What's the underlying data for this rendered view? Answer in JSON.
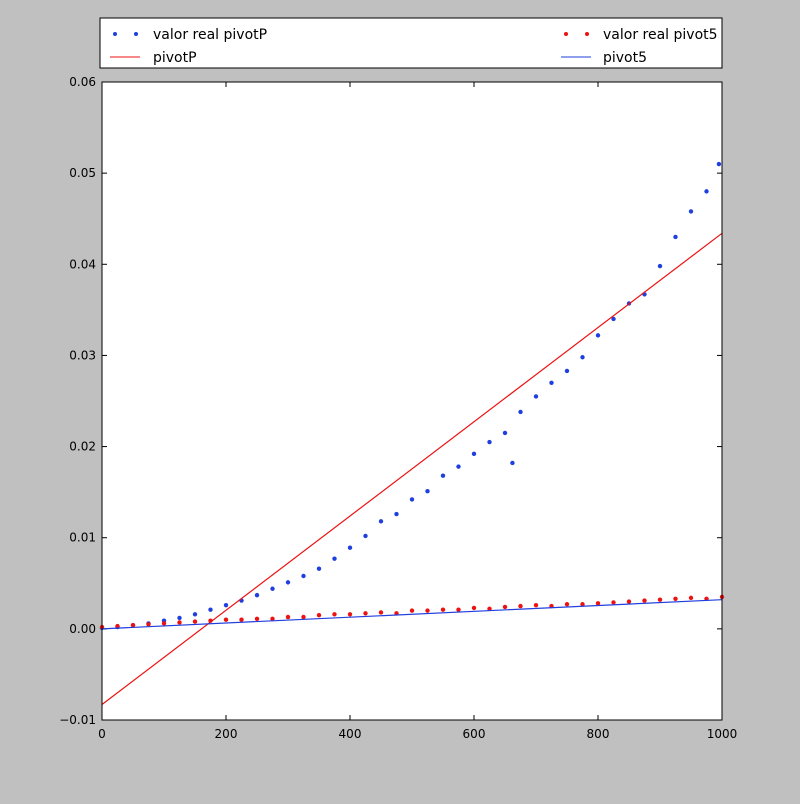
{
  "chart_data": {
    "type": "scatter",
    "title": "",
    "xlabel": "",
    "ylabel": "",
    "xlim": [
      0,
      1000
    ],
    "ylim": [
      -0.01,
      0.06
    ],
    "x_ticks": [
      0,
      200,
      400,
      600,
      800,
      1000
    ],
    "x_tick_labels": [
      "0",
      "200",
      "400",
      "600",
      "800",
      "1000"
    ],
    "y_ticks": [
      -0.01,
      0.0,
      0.01,
      0.02,
      0.03,
      0.04,
      0.05,
      0.06
    ],
    "y_tick_labels": [
      "−0.01",
      "0.00",
      "0.01",
      "0.02",
      "0.03",
      "0.04",
      "0.05",
      "0.06"
    ],
    "grid": false,
    "legend_placement": "top, outside, two columns",
    "series": [
      {
        "name": "valor real pivotP",
        "kind": "scatter",
        "color": "#1f3fe0",
        "x": [
          0,
          25,
          50,
          75,
          100,
          125,
          150,
          175,
          200,
          225,
          250,
          275,
          300,
          325,
          350,
          375,
          400,
          425,
          450,
          475,
          500,
          525,
          550,
          575,
          600,
          625,
          650,
          662,
          675,
          700,
          725,
          750,
          775,
          800,
          825,
          850,
          875,
          900,
          925,
          950,
          975,
          995
        ],
        "y": [
          0.0001,
          0.0002,
          0.0004,
          0.0006,
          0.0009,
          0.0012,
          0.0016,
          0.0021,
          0.0026,
          0.0031,
          0.0037,
          0.0044,
          0.0051,
          0.0058,
          0.0066,
          0.0077,
          0.0089,
          0.0102,
          0.0118,
          0.0126,
          0.0142,
          0.0151,
          0.0168,
          0.0178,
          0.0192,
          0.0205,
          0.0215,
          0.0182,
          0.0238,
          0.0255,
          0.027,
          0.0283,
          0.0298,
          0.0322,
          0.034,
          0.0357,
          0.0367,
          0.0398,
          0.043,
          0.0458,
          0.048,
          0.051
        ]
      },
      {
        "name": "pivotP",
        "kind": "line",
        "color": "#ee1111",
        "x": [
          0,
          1000
        ],
        "y": [
          -0.0083,
          0.0434
        ]
      },
      {
        "name": "valor real pivot5",
        "kind": "scatter",
        "color": "#ee1111",
        "x": [
          0,
          25,
          50,
          75,
          100,
          125,
          150,
          175,
          200,
          225,
          250,
          275,
          300,
          325,
          350,
          375,
          400,
          425,
          450,
          475,
          500,
          525,
          550,
          575,
          600,
          625,
          650,
          675,
          700,
          725,
          750,
          775,
          800,
          825,
          850,
          875,
          900,
          925,
          950,
          975,
          1000
        ],
        "y": [
          0.0002,
          0.0003,
          0.0004,
          0.0005,
          0.0006,
          0.0007,
          0.0008,
          0.0009,
          0.001,
          0.001,
          0.0011,
          0.0011,
          0.0013,
          0.0013,
          0.0015,
          0.0016,
          0.0016,
          0.0017,
          0.0018,
          0.0017,
          0.002,
          0.002,
          0.0021,
          0.0021,
          0.0023,
          0.0022,
          0.0024,
          0.0025,
          0.0026,
          0.0025,
          0.0027,
          0.0027,
          0.0028,
          0.0029,
          0.003,
          0.0031,
          0.0032,
          0.0033,
          0.0034,
          0.0033,
          0.0035
        ]
      },
      {
        "name": "pivot5",
        "kind": "line",
        "color": "#1f3fe0",
        "x": [
          0,
          1000
        ],
        "y": [
          0.0,
          0.0032
        ]
      }
    ]
  }
}
